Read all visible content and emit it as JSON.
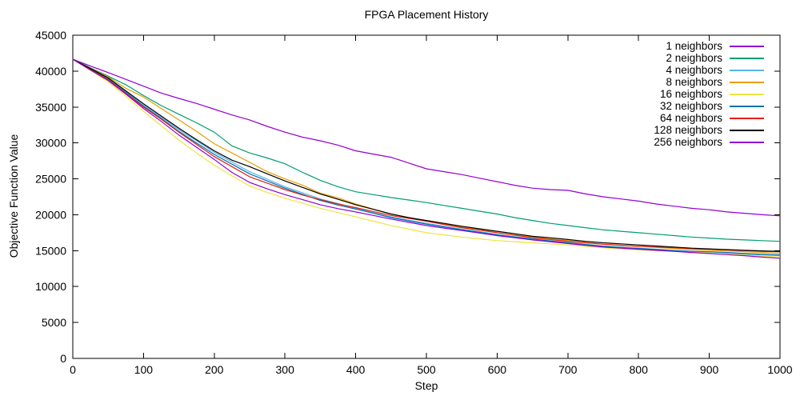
{
  "title": "FPGA Placement History",
  "chart_data": {
    "type": "line",
    "title": "FPGA Placement History",
    "xlabel": "Step",
    "ylabel": "Objective Function Value",
    "xlim": [
      0,
      1000
    ],
    "ylim": [
      0,
      45000
    ],
    "x_ticks": [
      0,
      100,
      200,
      300,
      400,
      500,
      600,
      700,
      800,
      900,
      1000
    ],
    "y_ticks": [
      0,
      5000,
      10000,
      15000,
      20000,
      25000,
      30000,
      35000,
      40000,
      45000
    ],
    "grid": false,
    "legend_position": "top-right-inside",
    "background": "#ffffff",
    "axis_color": "#000000",
    "x": [
      0,
      25,
      50,
      75,
      100,
      125,
      150,
      175,
      200,
      225,
      250,
      275,
      300,
      325,
      350,
      375,
      400,
      425,
      450,
      475,
      500,
      525,
      550,
      575,
      600,
      625,
      650,
      675,
      700,
      725,
      750,
      775,
      800,
      825,
      850,
      875,
      900,
      925,
      950,
      975,
      1000
    ],
    "series": [
      {
        "name": "1 neighbors",
        "color": "#9400d3",
        "values": [
          41650,
          40700,
          39800,
          38850,
          37900,
          36950,
          36200,
          35500,
          34700,
          33900,
          33200,
          32300,
          31500,
          30800,
          30300,
          29700,
          28900,
          28450,
          28000,
          27200,
          26400,
          26000,
          25600,
          25100,
          24600,
          24100,
          23700,
          23500,
          23400,
          22900,
          22500,
          22200,
          21900,
          21500,
          21200,
          20900,
          20700,
          20400,
          20200,
          20000,
          19850
        ]
      },
      {
        "name": "2 neighbors",
        "color": "#009e73",
        "values": [
          41650,
          40450,
          39300,
          38100,
          36600,
          35200,
          34000,
          32800,
          31500,
          29600,
          28600,
          27900,
          27100,
          25900,
          24800,
          23900,
          23200,
          22800,
          22400,
          22050,
          21700,
          21300,
          20900,
          20500,
          20100,
          19600,
          19200,
          18800,
          18500,
          18200,
          17900,
          17700,
          17500,
          17300,
          17100,
          16900,
          16750,
          16600,
          16500,
          16400,
          16300
        ]
      },
      {
        "name": "4 neighbors",
        "color": "#56b4e9",
        "values": [
          41650,
          40300,
          38950,
          37100,
          35250,
          33550,
          31850,
          30300,
          28700,
          27350,
          26000,
          24950,
          23900,
          23050,
          22200,
          21550,
          20900,
          20300,
          19700,
          19250,
          18800,
          18400,
          18000,
          17650,
          17250,
          16950,
          16650,
          16400,
          16150,
          15900,
          15650,
          15500,
          15350,
          15200,
          15050,
          14900,
          14750,
          14650,
          14500,
          14400,
          14300
        ]
      },
      {
        "name": "8 neighbors",
        "color": "#e69f00",
        "values": [
          41650,
          40400,
          39200,
          37600,
          36400,
          34800,
          33200,
          31600,
          29900,
          28600,
          27300,
          26000,
          25000,
          24100,
          23000,
          22350,
          21500,
          20800,
          20100,
          19600,
          19100,
          18700,
          18300,
          17950,
          17500,
          17200,
          16900,
          16650,
          16400,
          16150,
          15900,
          15750,
          15600,
          15450,
          15300,
          15150,
          15050,
          14950,
          14850,
          14750,
          14630
        ]
      },
      {
        "name": "16 neighbors",
        "color": "#f0e442",
        "values": [
          41650,
          40100,
          38500,
          36500,
          34400,
          32400,
          30400,
          28600,
          26900,
          25400,
          24000,
          23100,
          22300,
          21600,
          20900,
          20300,
          19700,
          19100,
          18500,
          18000,
          17500,
          17200,
          16900,
          16650,
          16400,
          16250,
          16100,
          15950,
          15800,
          15600,
          15400,
          15250,
          15100,
          15000,
          14900,
          14800,
          14700,
          14550,
          14400,
          14250,
          14100
        ]
      },
      {
        "name": "32 neighbors",
        "color": "#0072b2",
        "values": [
          41650,
          40250,
          38850,
          37000,
          35100,
          33400,
          31600,
          30000,
          28400,
          27050,
          25700,
          24700,
          23700,
          22850,
          22000,
          21350,
          20800,
          20200,
          19600,
          19150,
          18700,
          18300,
          17900,
          17550,
          17200,
          16900,
          16600,
          16350,
          16100,
          15850,
          15600,
          15450,
          15300,
          15150,
          15000,
          14900,
          14850,
          14750,
          14600,
          14500,
          14400
        ]
      },
      {
        "name": "64 neighbors",
        "color": "#e51e10",
        "values": [
          41650,
          40200,
          38800,
          36900,
          35000,
          33300,
          31500,
          29800,
          28100,
          26700,
          25300,
          24400,
          23500,
          22750,
          22100,
          21500,
          21000,
          20450,
          19900,
          19500,
          19100,
          18650,
          18200,
          17850,
          17500,
          17150,
          16800,
          16550,
          16300,
          16100,
          15900,
          15750,
          15600,
          15500,
          15400,
          15300,
          15200,
          15100,
          15000,
          14920,
          14850
        ]
      },
      {
        "name": "128 neighbors",
        "color": "#000000",
        "values": [
          41650,
          40350,
          39050,
          37250,
          35450,
          33750,
          32050,
          30450,
          28900,
          27600,
          26700,
          25700,
          24700,
          23800,
          22900,
          22150,
          21400,
          20750,
          20100,
          19600,
          19200,
          18800,
          18400,
          18050,
          17700,
          17350,
          17000,
          16800,
          16550,
          16300,
          16100,
          15950,
          15800,
          15650,
          15500,
          15350,
          15250,
          15150,
          15050,
          14970,
          14900
        ]
      },
      {
        "name": "256 neighbors",
        "color": "#9400d3",
        "values": [
          41650,
          40150,
          38700,
          36800,
          34800,
          33000,
          31100,
          29400,
          27700,
          25900,
          24500,
          23600,
          22800,
          22100,
          21400,
          20850,
          20400,
          19900,
          19400,
          18950,
          18500,
          18150,
          17800,
          17450,
          17100,
          16800,
          16500,
          16250,
          16000,
          15750,
          15500,
          15350,
          15200,
          15050,
          14900,
          14750,
          14600,
          14450,
          14300,
          14100,
          13950
        ]
      }
    ]
  }
}
